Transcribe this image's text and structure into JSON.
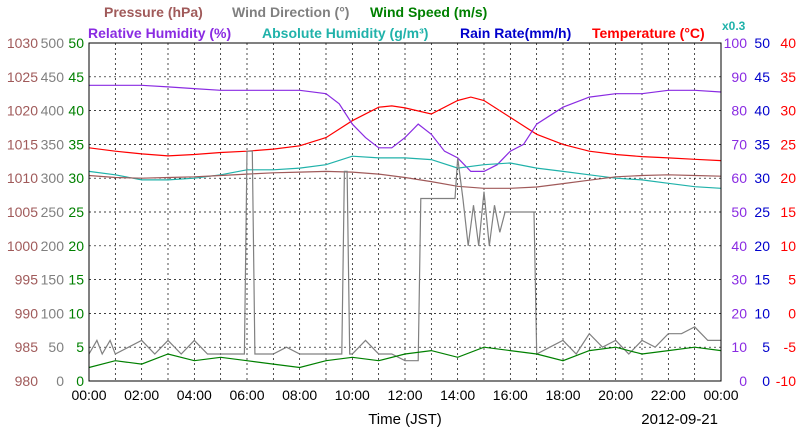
{
  "chart_data": {
    "type": "line",
    "date": "2012-09-21",
    "xlabel": "Time (JST)",
    "x_ticks": [
      "00:00",
      "02:00",
      "04:00",
      "06:00",
      "08:00",
      "10:00",
      "12:00",
      "14:00",
      "16:00",
      "18:00",
      "20:00",
      "22:00",
      "00:00"
    ],
    "grid": true,
    "legend": [
      {
        "label": "Pressure (hPa)",
        "color": "#a05a5a"
      },
      {
        "label": "Wind Direction (°)",
        "color": "#808080"
      },
      {
        "label": "Wind Speed (m/s)",
        "color": "#008000"
      },
      {
        "label": "Relative Humidity (%)",
        "color": "#8a2be2"
      },
      {
        "label": "Absolute Humidity (g/m³)",
        "color": "#20b2aa"
      },
      {
        "label": "Rain Rate(mm/h)",
        "color": "#0000cc"
      },
      {
        "label": "Temperature (°C)",
        "color": "#ff0000"
      }
    ],
    "scale_note": "x0.3",
    "axes": {
      "pressure": {
        "label": "Pressure (hPa)",
        "range": [
          980,
          1030
        ],
        "ticks": [
          "1030",
          "1025",
          "1020",
          "1015",
          "1010",
          "1005",
          "1000",
          "995",
          "990",
          "985",
          "980"
        ],
        "color": "#a05a5a"
      },
      "wind_direction": {
        "label": "Wind Direction (°)",
        "range": [
          0,
          500
        ],
        "ticks": [
          "500",
          "450",
          "400",
          "350",
          "300",
          "250",
          "200",
          "150",
          "100",
          "50",
          "0"
        ],
        "color": "#808080"
      },
      "wind_speed": {
        "label": "Wind Speed (m/s)",
        "range": [
          0,
          50
        ],
        "ticks": [
          "50",
          "45",
          "40",
          "35",
          "30",
          "25",
          "20",
          "15",
          "10",
          "5",
          "0"
        ],
        "color": "#008000"
      },
      "humidity": {
        "label": "Relative Humidity (%)",
        "range": [
          0,
          100
        ],
        "ticks": [
          "100",
          "90",
          "80",
          "70",
          "60",
          "50",
          "40",
          "30",
          "20",
          "10",
          "0"
        ],
        "color": "#8a2be2"
      },
      "rain_rate": {
        "label": "Rain Rate(mm/h)",
        "range": [
          0,
          50
        ],
        "ticks": [
          "50",
          "45",
          "40",
          "35",
          "30",
          "25",
          "20",
          "15",
          "10",
          "5",
          "0"
        ],
        "color": "#0000cc"
      },
      "temperature": {
        "label": "Temperature (°C)",
        "range": [
          -10,
          40
        ],
        "ticks": [
          "40",
          "35",
          "30",
          "25",
          "20",
          "15",
          "10",
          "5",
          "0",
          "-5",
          "-10"
        ],
        "color": "#ff0000"
      }
    },
    "series": [
      {
        "name": "Temperature (°C)",
        "axis": "temperature",
        "color": "#ff0000",
        "x": [
          0,
          1,
          2,
          3,
          4,
          5,
          6,
          7,
          8,
          9,
          10,
          11,
          11.5,
          12,
          13,
          14,
          14.5,
          15,
          16,
          17,
          18,
          19,
          20,
          21,
          22,
          23,
          24
        ],
        "y": [
          24.5,
          24,
          23.6,
          23.3,
          23.5,
          23.8,
          24,
          24.3,
          24.8,
          26,
          28.5,
          30.5,
          30.7,
          30.4,
          29.5,
          31.5,
          32,
          31.5,
          29,
          26.5,
          25,
          24,
          23.5,
          23.2,
          23,
          22.8,
          22.6
        ]
      },
      {
        "name": "Relative Humidity (%)",
        "axis": "humidity",
        "color": "#8a2be2",
        "x": [
          0,
          2,
          3,
          4,
          5,
          6,
          7,
          8,
          9,
          9.5,
          10,
          10.5,
          11,
          11.5,
          12,
          12.5,
          13,
          13.5,
          14,
          14.5,
          15,
          15.5,
          16,
          16.5,
          17,
          18,
          19,
          20,
          21,
          22,
          23,
          24
        ],
        "y": [
          87.5,
          87.5,
          87,
          86.5,
          86,
          86,
          86,
          86,
          85,
          82,
          76,
          72,
          69,
          69,
          72,
          76,
          73,
          68,
          66,
          62,
          62,
          64,
          68,
          70,
          76,
          81,
          84,
          85,
          85,
          86,
          86,
          85.5
        ]
      },
      {
        "name": "Absolute Humidity (g/m³)",
        "axis": "humidity",
        "color": "#20b2aa",
        "x": [
          0,
          1,
          2,
          3,
          4,
          5,
          6,
          7,
          8,
          9,
          10,
          11,
          12,
          13,
          14,
          15,
          16,
          17,
          18,
          19,
          20,
          21,
          22,
          23,
          24
        ],
        "y": [
          62,
          61,
          59.5,
          59.5,
          60,
          61,
          62.5,
          62.5,
          63,
          64,
          66.5,
          66,
          66,
          65.5,
          63,
          64,
          64.5,
          63,
          62,
          61,
          60,
          59.5,
          58.5,
          57.5,
          57
        ]
      },
      {
        "name": "Pressure (hPa)",
        "axis": "pressure",
        "color": "#a05a5a",
        "x": [
          0,
          1,
          2,
          3,
          4,
          5,
          6,
          7,
          8,
          9,
          10,
          11,
          12,
          13,
          14,
          15,
          16,
          17,
          18,
          19,
          20,
          21,
          22,
          23,
          24
        ],
        "y": [
          1010.4,
          1010.1,
          1010,
          1010.1,
          1010.2,
          1010.4,
          1010.6,
          1010.8,
          1010.9,
          1011,
          1010.9,
          1010.6,
          1010.1,
          1009.5,
          1008.8,
          1008.5,
          1008.5,
          1008.7,
          1009.2,
          1009.7,
          1010.2,
          1010.4,
          1010.5,
          1010.4,
          1010.3
        ]
      },
      {
        "name": "Wind Direction (°)",
        "axis": "wind_direction",
        "color": "#808080",
        "x": [
          0,
          0.3,
          0.5,
          0.8,
          1,
          1.5,
          2,
          2.5,
          3,
          3.5,
          4,
          4.5,
          5,
          5.5,
          5.9,
          6,
          6.1,
          6.2,
          6.3,
          6.5,
          7,
          7.5,
          8,
          8.5,
          9,
          9.6,
          9.7,
          9.8,
          9.9,
          10,
          10.5,
          11,
          11.5,
          12,
          12.5,
          12.6,
          13,
          13.5,
          13.9,
          14,
          14.2,
          14.4,
          14.6,
          14.8,
          15,
          15.2,
          15.4,
          15.6,
          15.8,
          16,
          16.5,
          16.9,
          17,
          17.5,
          18,
          18.5,
          19,
          19.5,
          20,
          20.5,
          21,
          21.5,
          22,
          22.5,
          23,
          23.5,
          24
        ],
        "y": [
          40,
          60,
          40,
          60,
          40,
          50,
          60,
          40,
          60,
          40,
          60,
          40,
          40,
          40,
          40,
          340,
          340,
          340,
          40,
          40,
          40,
          50,
          40,
          40,
          40,
          40,
          310,
          310,
          40,
          40,
          60,
          40,
          40,
          30,
          30,
          270,
          270,
          270,
          270,
          330,
          270,
          200,
          260,
          200,
          280,
          200,
          260,
          220,
          250,
          250,
          250,
          250,
          40,
          50,
          60,
          40,
          70,
          50,
          60,
          40,
          60,
          50,
          70,
          70,
          80,
          60,
          60
        ]
      },
      {
        "name": "Wind Speed (m/s)",
        "axis": "wind_speed",
        "color": "#008000",
        "x": [
          0,
          1,
          2,
          3,
          4,
          5,
          6,
          7,
          8,
          9,
          10,
          11,
          12,
          13,
          14,
          15,
          16,
          17,
          18,
          19,
          20,
          21,
          22,
          23,
          24
        ],
        "y": [
          2,
          3,
          2.5,
          4,
          3,
          3.5,
          3,
          2.5,
          2,
          3,
          3.5,
          3,
          4,
          4.5,
          3.5,
          5,
          4.5,
          4,
          3,
          4.5,
          5,
          4,
          4.5,
          5,
          4.5
        ]
      }
    ]
  }
}
